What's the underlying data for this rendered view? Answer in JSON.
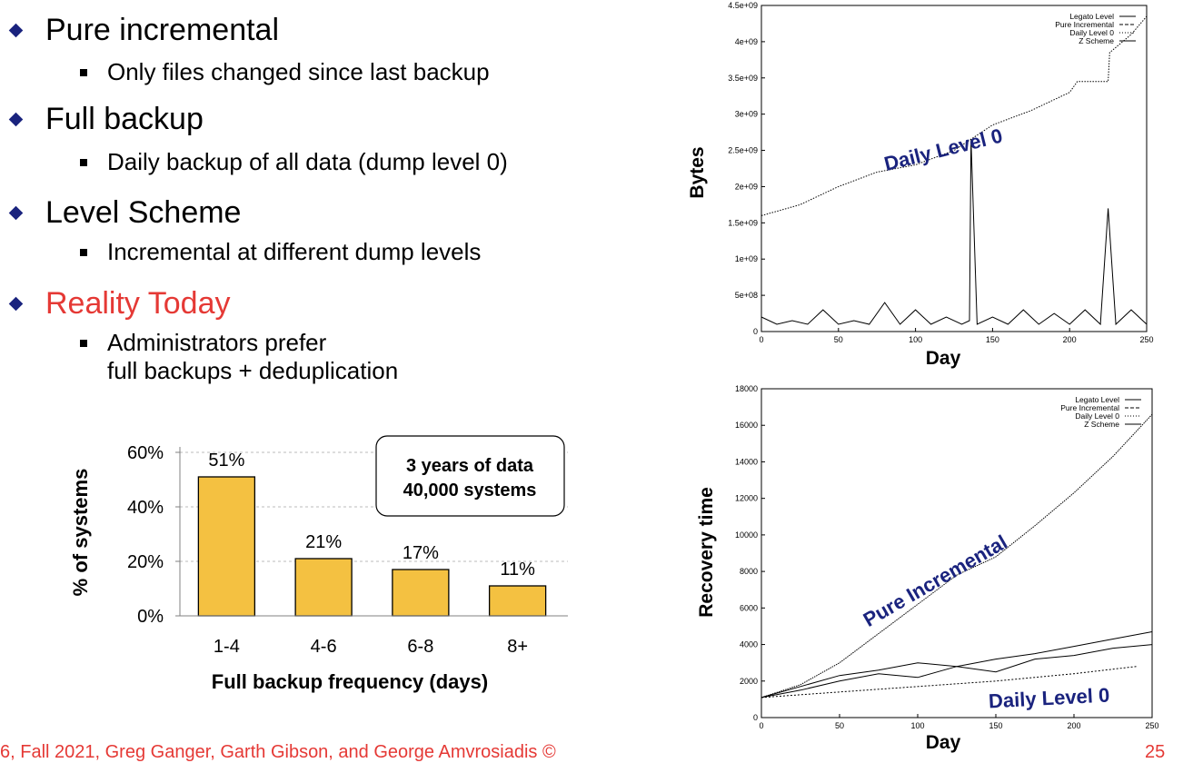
{
  "bullets": [
    {
      "title": "Pure incremental",
      "color": "#000000",
      "sub": [
        "Only files changed since last backup"
      ]
    },
    {
      "title": "Full backup",
      "color": "#000000",
      "sub": [
        "Daily backup of all data (dump level 0)"
      ]
    },
    {
      "title": "Level Scheme",
      "color": "#000000",
      "sub": [
        "Incremental at different dump levels"
      ]
    },
    {
      "title": "Reality Today",
      "color": "#e53935",
      "sub": [
        "Administrators prefer",
        "full backups + deduplication"
      ]
    }
  ],
  "footer": "6, Fall 2021, Greg Ganger, Garth Gibson, and George Amvrosiadis ©",
  "page_number": "25",
  "chart_data": [
    {
      "type": "bar",
      "categories": [
        "1-4",
        "4-6",
        "6-8",
        "8+"
      ],
      "values": [
        51,
        21,
        17,
        11
      ],
      "data_labels": [
        "51%",
        "21%",
        "17%",
        "11%"
      ],
      "yticks": [
        "0%",
        "20%",
        "40%",
        "60%"
      ],
      "ylim": [
        0,
        60
      ],
      "ylabel": "% of systems",
      "xlabel": "Full backup frequency (days)",
      "annotation": [
        "3 years of data",
        "40,000 systems"
      ],
      "bar_color": "#f4c141",
      "grid": "horizontal dashed"
    },
    {
      "type": "line",
      "xlabel": "Day",
      "ylabel": "Bytes",
      "xlim": [
        0,
        250
      ],
      "ylim": [
        0,
        4500000000
      ],
      "xticks": [
        "0",
        "50",
        "100",
        "150",
        "200",
        "250"
      ],
      "yticks": [
        "0",
        "5e+08",
        "1e+09",
        "1.5e+09",
        "2e+09",
        "2.5e+09",
        "3e+09",
        "3.5e+09",
        "4e+09",
        "4.5e+09"
      ],
      "legend": [
        "Legato Level",
        "Pure Incremental",
        "Daily Level 0",
        "Z Scheme"
      ],
      "legend_position": "top-right",
      "annotation": "Daily Level 0",
      "series": [
        {
          "name": "Daily Level 0",
          "x": [
            0,
            25,
            50,
            75,
            100,
            125,
            150,
            175,
            200,
            205,
            225,
            226,
            240,
            250
          ],
          "values": [
            1600000000,
            1750000000,
            2000000000,
            2200000000,
            2300000000,
            2500000000,
            2850000000,
            3050000000,
            3300000000,
            3450000000,
            3450000000,
            3850000000,
            4100000000,
            4350000000
          ]
        },
        {
          "name": "Legato Level",
          "x": [
            0,
            10,
            20,
            30,
            40,
            50,
            60,
            70,
            80,
            90,
            100,
            110,
            120,
            130,
            135,
            136,
            140,
            150,
            160,
            170,
            180,
            190,
            200,
            210,
            220,
            225,
            230,
            240,
            250
          ],
          "values": [
            200000000,
            100000000,
            150000000,
            100000000,
            300000000,
            100000000,
            150000000,
            100000000,
            400000000,
            100000000,
            300000000,
            100000000,
            200000000,
            100000000,
            150000000,
            2650000000,
            100000000,
            200000000,
            100000000,
            300000000,
            100000000,
            250000000,
            100000000,
            300000000,
            100000000,
            1700000000,
            100000000,
            300000000,
            100000000
          ]
        }
      ]
    },
    {
      "type": "line",
      "xlabel": "Day",
      "ylabel": "Recovery time",
      "xlim": [
        0,
        250
      ],
      "ylim": [
        0,
        18000
      ],
      "xticks": [
        "0",
        "50",
        "100",
        "150",
        "200",
        "250"
      ],
      "yticks": [
        "0",
        "2000",
        "4000",
        "6000",
        "8000",
        "10000",
        "12000",
        "14000",
        "16000",
        "18000"
      ],
      "legend": [
        "Legato Level",
        "Pure Incremental",
        "Daily Level 0",
        "Z Scheme"
      ],
      "legend_position": "top-right",
      "annotations": [
        "Pure Incremental",
        "Daily Level 0"
      ],
      "series": [
        {
          "name": "Pure Incremental",
          "x": [
            0,
            25,
            50,
            75,
            100,
            125,
            150,
            175,
            200,
            225,
            250
          ],
          "values": [
            1100,
            1800,
            3000,
            4600,
            6200,
            7800,
            8800,
            10500,
            12300,
            14300,
            16600
          ]
        },
        {
          "name": "Legato Level",
          "x": [
            0,
            25,
            50,
            75,
            100,
            125,
            150,
            175,
            200,
            225,
            250
          ],
          "values": [
            1100,
            1700,
            2300,
            2600,
            3000,
            2800,
            3200,
            3500,
            3900,
            4300,
            4700
          ]
        },
        {
          "name": "Z Scheme",
          "x": [
            0,
            25,
            50,
            75,
            100,
            125,
            150,
            175,
            200,
            225,
            250
          ],
          "values": [
            1100,
            1500,
            2000,
            2400,
            2200,
            2800,
            2500,
            3200,
            3400,
            3800,
            4000
          ]
        },
        {
          "name": "Daily Level 0",
          "x": [
            0,
            50,
            100,
            150,
            200,
            240
          ],
          "values": [
            1100,
            1400,
            1700,
            2000,
            2400,
            2800
          ]
        }
      ]
    }
  ]
}
